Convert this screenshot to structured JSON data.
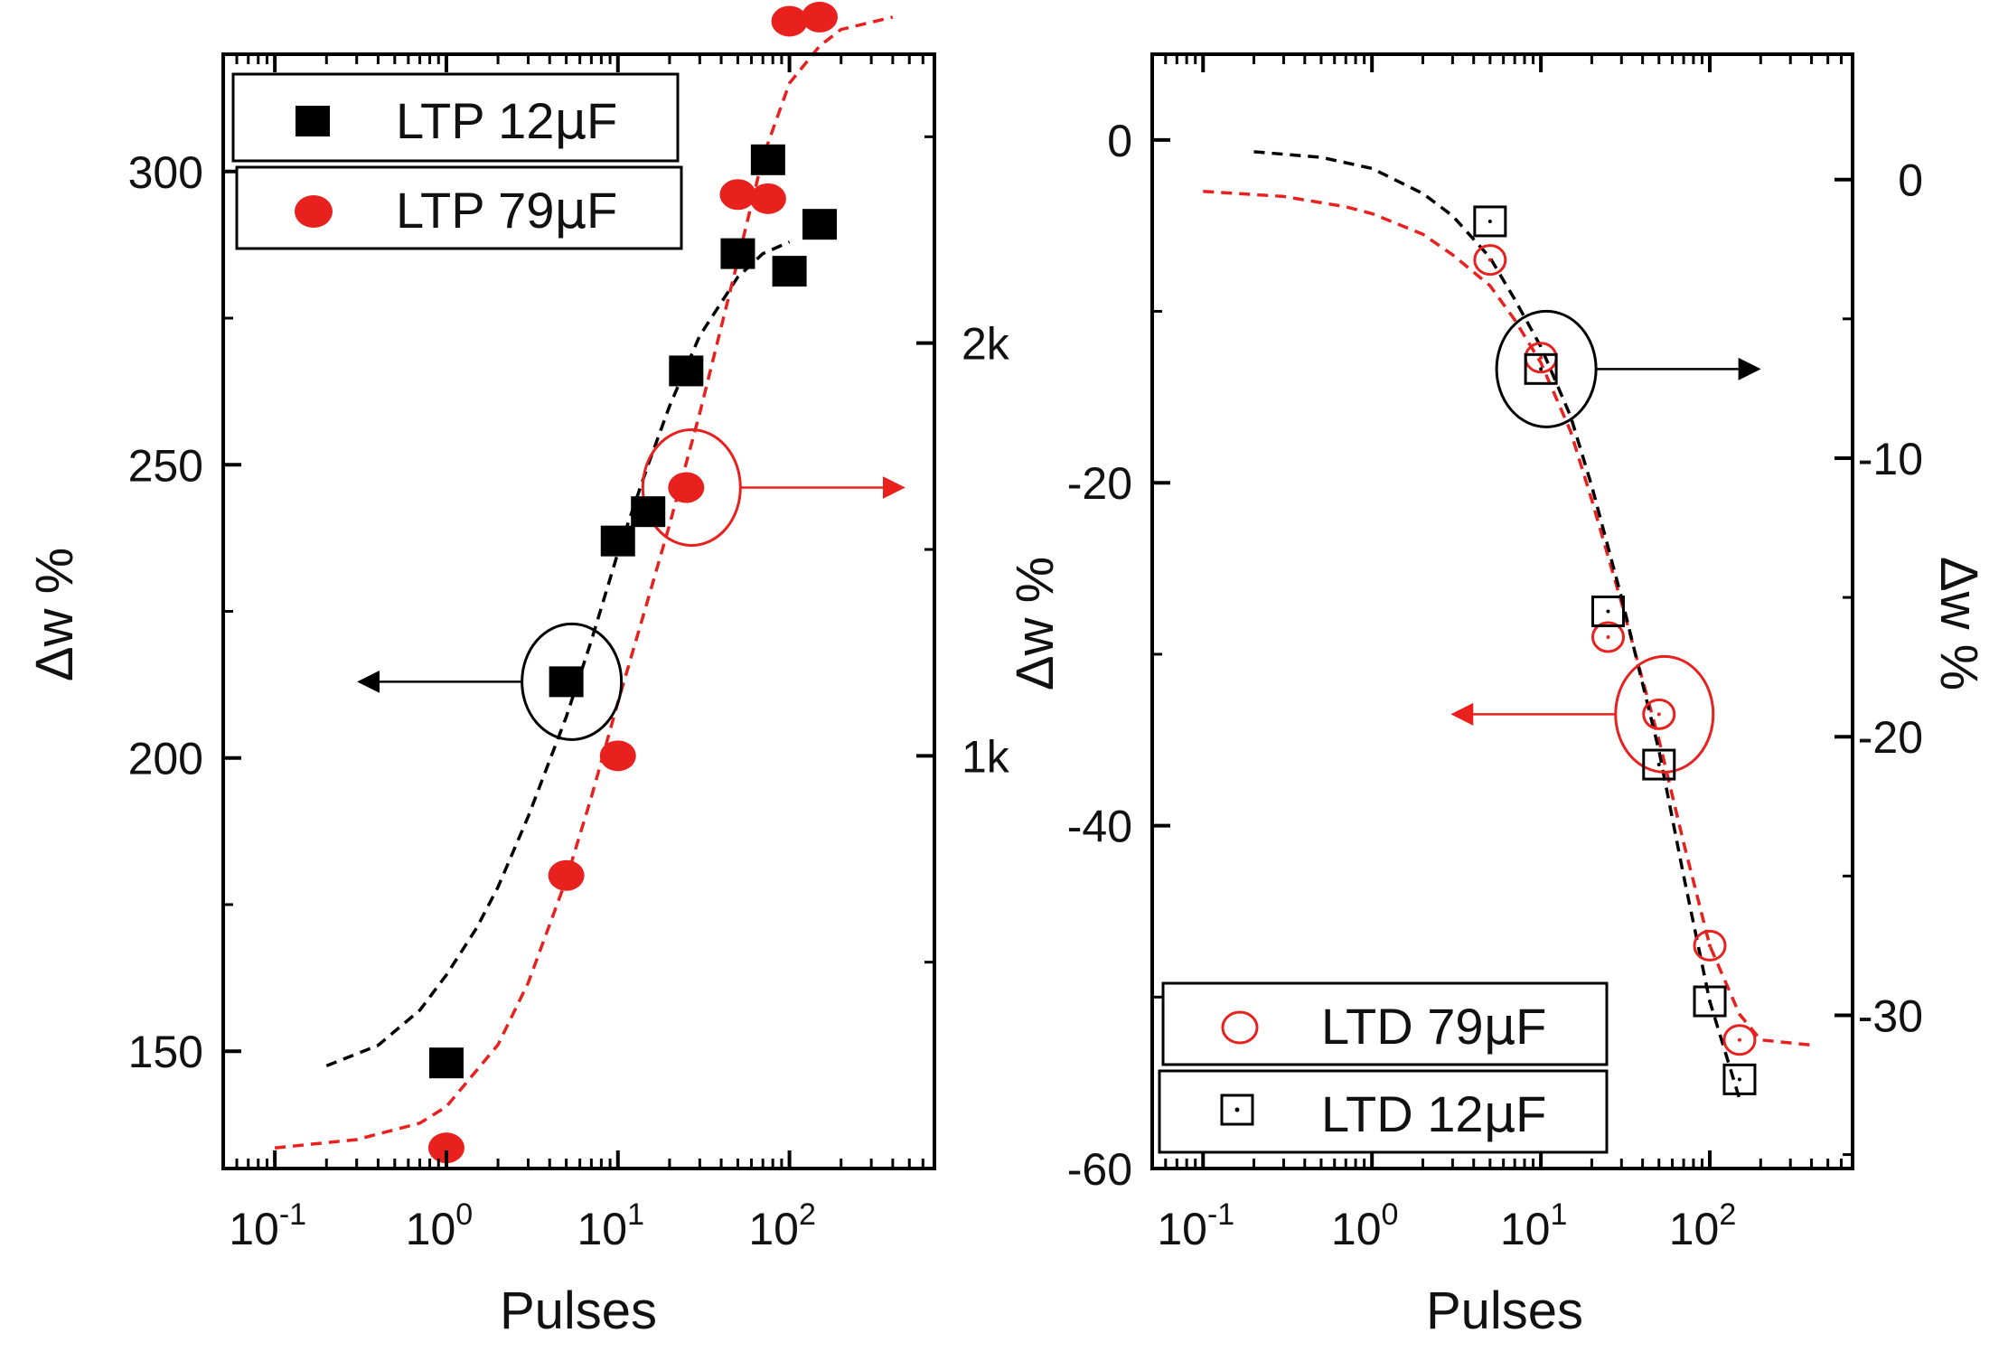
{
  "chart_data": [
    {
      "type": "scatter",
      "xscale": "log",
      "xlabel": "Pulses",
      "ylabel": "Δw %",
      "xlim": [
        0.05,
        700
      ],
      "ylim": [
        130,
        320
      ],
      "x_ticks": [
        {
          "value": 0.1,
          "base": "10",
          "exp": "-1"
        },
        {
          "value": 1,
          "base": "10",
          "exp": "0"
        },
        {
          "value": 10,
          "base": "10",
          "exp": "1"
        },
        {
          "value": 100,
          "base": "10",
          "exp": "2"
        }
      ],
      "y_ticks": [
        {
          "value": 150,
          "label": "150"
        },
        {
          "value": 200,
          "label": "200"
        },
        {
          "value": 250,
          "label": "250"
        },
        {
          "value": 300,
          "label": "300"
        }
      ],
      "right_axis": {
        "ylim": [
          0,
          2700
        ],
        "ticks": [
          {
            "value": 1000,
            "label": "1k"
          },
          {
            "value": 2000,
            "label": "2k"
          }
        ]
      },
      "legend_position": "top-left",
      "series": [
        {
          "name": "LTP 12μF",
          "legend_main": "LTP 12",
          "legend_mu": "μ",
          "legend_unit": "F",
          "color": "#000000",
          "marker": "filled-square",
          "axis": "left",
          "points": [
            [
              1,
              148
            ],
            [
              5,
              213
            ],
            [
              10,
              237
            ],
            [
              15,
              242
            ],
            [
              25,
              266
            ],
            [
              50,
              286
            ],
            [
              75,
              302
            ],
            [
              100,
              283
            ],
            [
              150,
              291
            ]
          ],
          "fit": [
            [
              0.2,
              147.5
            ],
            [
              0.4,
              151
            ],
            [
              0.7,
              157
            ],
            [
              1,
              163
            ],
            [
              1.5,
              171
            ],
            [
              2,
              178
            ],
            [
              3,
              190
            ],
            [
              5,
              207
            ],
            [
              7,
              220
            ],
            [
              10,
              235
            ],
            [
              15,
              250
            ],
            [
              20,
              260
            ],
            [
              30,
              272
            ],
            [
              50,
              282
            ],
            [
              70,
              286
            ],
            [
              100,
              288
            ]
          ]
        },
        {
          "name": "LTP 79μF",
          "legend_main": "LTP 79",
          "legend_mu": "μ",
          "legend_unit": "F",
          "color": "#e8201e",
          "marker": "filled-circle",
          "axis": "right",
          "points": [
            [
              1,
              50
            ],
            [
              5,
              710
            ],
            [
              10,
              1000
            ],
            [
              25,
              1650
            ],
            [
              50,
              2360
            ],
            [
              75,
              2350
            ],
            [
              100,
              2780
            ],
            [
              150,
              2790
            ]
          ],
          "fit": [
            [
              0.1,
              50
            ],
            [
              0.3,
              70
            ],
            [
              0.7,
              110
            ],
            [
              1,
              150
            ],
            [
              2,
              300
            ],
            [
              3,
              450
            ],
            [
              5,
              700
            ],
            [
              7,
              900
            ],
            [
              10,
              1130
            ],
            [
              15,
              1380
            ],
            [
              20,
              1560
            ],
            [
              30,
              1830
            ],
            [
              50,
              2200
            ],
            [
              70,
              2450
            ],
            [
              100,
              2630
            ],
            [
              150,
              2720
            ],
            [
              200,
              2760
            ],
            [
              400,
              2790
            ]
          ]
        }
      ],
      "annotations": [
        {
          "text": "",
          "target": "LTP 12μF",
          "arrow": "left",
          "color": "#000000",
          "at": [
            5,
            213
          ]
        },
        {
          "text": "",
          "target": "LTP 79μF",
          "arrow": "right",
          "color": "#e8201e",
          "at": [
            25,
            1650
          ]
        }
      ]
    },
    {
      "type": "scatter",
      "xscale": "log",
      "xlabel": "Pulses",
      "ylabel": "Δw %",
      "right_ylabel": "Δw %",
      "xlim": [
        0.05,
        700
      ],
      "ylim": [
        -60,
        5
      ],
      "x_ticks": [
        {
          "value": 0.1,
          "base": "10",
          "exp": "-1"
        },
        {
          "value": 1,
          "base": "10",
          "exp": "0"
        },
        {
          "value": 10,
          "base": "10",
          "exp": "1"
        },
        {
          "value": 100,
          "base": "10",
          "exp": "2"
        }
      ],
      "y_ticks": [
        {
          "value": 0,
          "label": "0"
        },
        {
          "value": -20,
          "label": "-20"
        },
        {
          "value": -40,
          "label": "-40"
        },
        {
          "value": -60,
          "label": "-60"
        }
      ],
      "right_axis": {
        "ylim": [
          -35.5,
          4.5
        ],
        "ticks": [
          {
            "value": 0,
            "label": "0"
          },
          {
            "value": -10,
            "label": "-10"
          },
          {
            "value": -20,
            "label": "-20"
          },
          {
            "value": -30,
            "label": "-30"
          }
        ]
      },
      "legend_position": "bottom-left",
      "series": [
        {
          "name": "LTD 79μF",
          "legend_main": "LTD 79",
          "legend_mu": "μ",
          "legend_unit": "F",
          "color": "#e8201e",
          "marker": "open-circle",
          "axis": "left",
          "points": [
            [
              5,
              -7
            ],
            [
              10,
              -12.7
            ],
            [
              25,
              -29
            ],
            [
              50,
              -33.5
            ],
            [
              100,
              -47
            ],
            [
              150,
              -52.5
            ]
          ],
          "fit": [
            [
              0.1,
              -3
            ],
            [
              0.3,
              -3.3
            ],
            [
              0.7,
              -3.9
            ],
            [
              1,
              -4.3
            ],
            [
              2,
              -5.5
            ],
            [
              3,
              -6.7
            ],
            [
              5,
              -8.5
            ],
            [
              7,
              -10.5
            ],
            [
              10,
              -13
            ],
            [
              15,
              -17
            ],
            [
              20,
              -21
            ],
            [
              30,
              -27
            ],
            [
              50,
              -35
            ],
            [
              70,
              -41
            ],
            [
              100,
              -47
            ],
            [
              150,
              -51
            ],
            [
              200,
              -52.5
            ],
            [
              400,
              -52.8
            ]
          ]
        },
        {
          "name": "LTD 12μF",
          "legend_main": "LTD 12",
          "legend_mu": "μ",
          "legend_unit": "F",
          "color": "#000000",
          "marker": "open-square",
          "axis": "right",
          "points": [
            [
              5,
              -1.5
            ],
            [
              10,
              -6.8
            ],
            [
              25,
              -15.5
            ],
            [
              50,
              -21
            ],
            [
              100,
              -29.5
            ],
            [
              150,
              -32.3
            ]
          ],
          "fit": [
            [
              0.2,
              1
            ],
            [
              0.5,
              0.8
            ],
            [
              1,
              0.4
            ],
            [
              2,
              -0.5
            ],
            [
              3,
              -1.3
            ],
            [
              5,
              -2.8
            ],
            [
              7,
              -4.3
            ],
            [
              10,
              -6
            ],
            [
              15,
              -8.5
            ],
            [
              20,
              -11
            ],
            [
              30,
              -15
            ],
            [
              50,
              -20.5
            ],
            [
              70,
              -25
            ],
            [
              100,
              -29.5
            ],
            [
              150,
              -33
            ]
          ]
        }
      ],
      "annotations": [
        {
          "text": "",
          "target": "LTD 12μF",
          "arrow": "right",
          "color": "#000000",
          "at": [
            10,
            -6.8
          ]
        },
        {
          "text": "",
          "target": "LTD 79μF",
          "arrow": "left",
          "color": "#e8201e",
          "at": [
            50,
            -33.5
          ]
        }
      ]
    }
  ]
}
